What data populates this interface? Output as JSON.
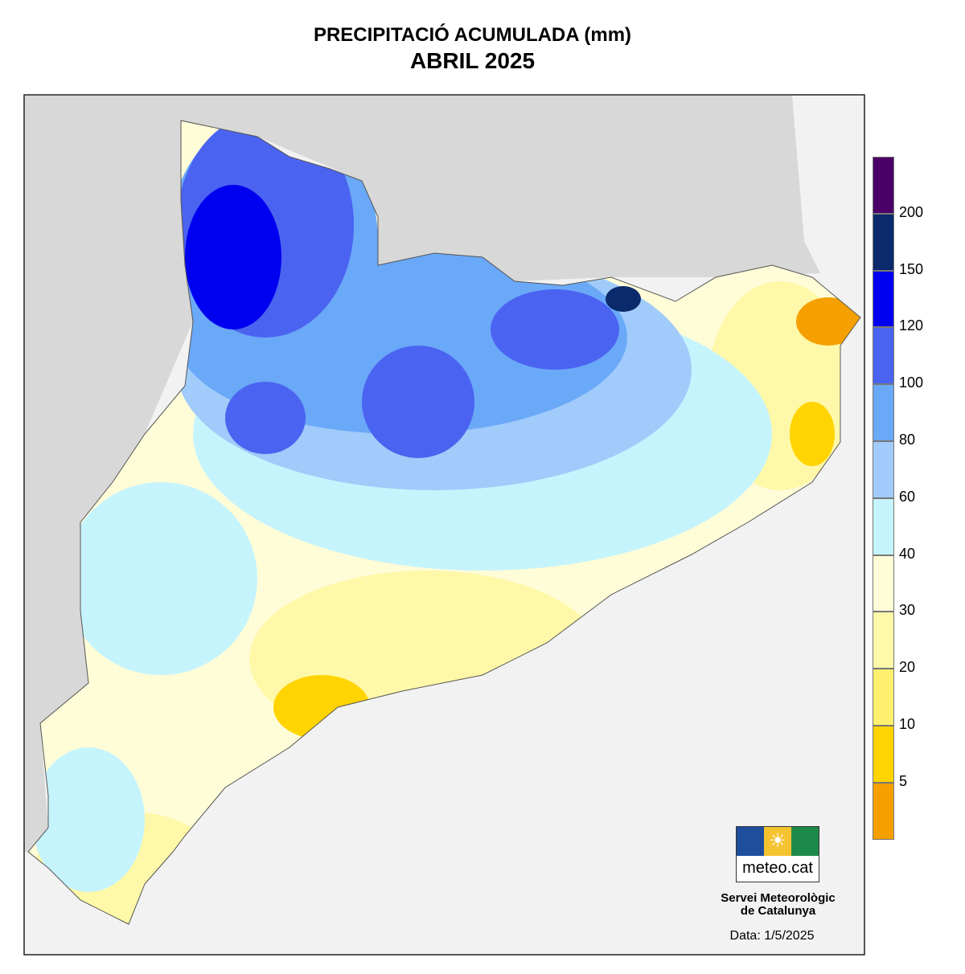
{
  "title": "PRECIPITACIÓ ACUMULADA (mm)",
  "subtitle": "ABRIL 2025",
  "legend": {
    "bins": [
      {
        "label": "",
        "color": "#4b0069"
      },
      {
        "label": "200",
        "color": "#0a2a6b"
      },
      {
        "label": "150",
        "color": "#0000f0"
      },
      {
        "label": "120",
        "color": "#4a63f0"
      },
      {
        "label": "100",
        "color": "#6aa8f8"
      },
      {
        "label": "80",
        "color": "#a0cbfa"
      },
      {
        "label": "60",
        "color": "#c6f4fc"
      },
      {
        "label": "40",
        "color": "#fffcd8"
      },
      {
        "label": "30",
        "color": "#fff8a8"
      },
      {
        "label": "20",
        "color": "#fff070"
      },
      {
        "label": "10",
        "color": "#ffd400"
      },
      {
        "label": "5",
        "color": "#f5a000"
      }
    ]
  },
  "logo": {
    "text": "meteo.cat",
    "colors": [
      "#1f4e9c",
      "#f5c330",
      "#1e8a4a"
    ]
  },
  "organization": {
    "line1": "Servei Meteorològic",
    "line2": "de Catalunya"
  },
  "date": "Data: 1/5/2025"
}
